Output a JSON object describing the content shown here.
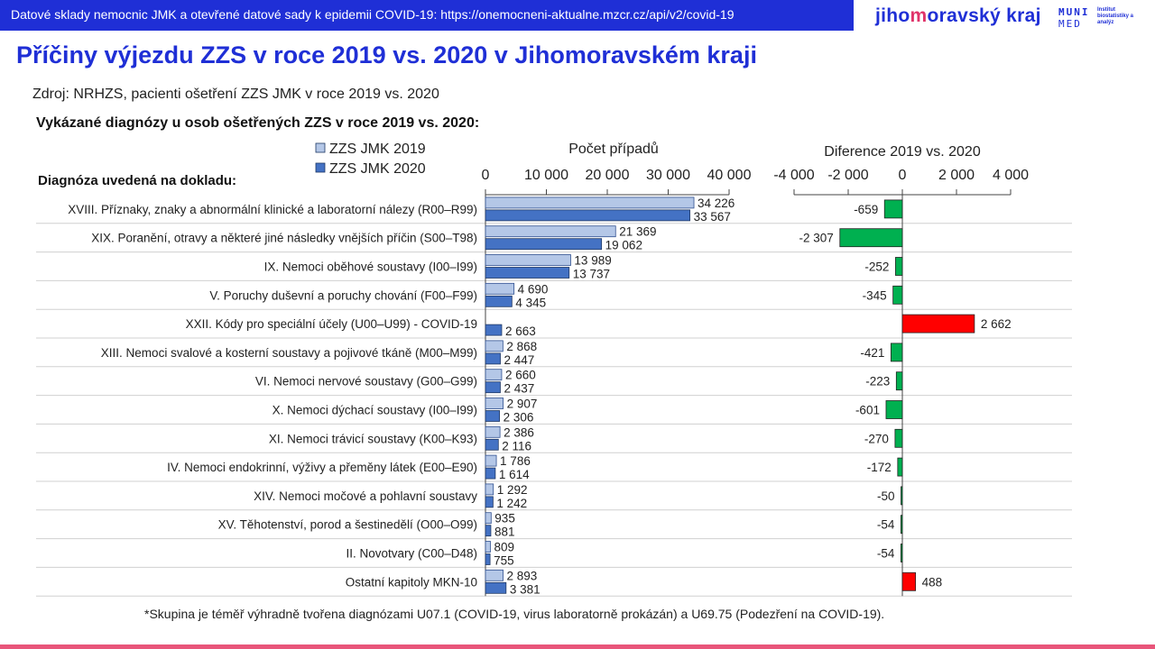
{
  "header": {
    "banner": "Datové sklady nemocnic JMK a otevřené datové sady k epidemii COVID-19: https://onemocneni-aktualne.mzcr.cz/api/v2/covid-19",
    "logo_jmk_pre": "jiho",
    "logo_jmk_hl": "m",
    "logo_jmk_post": "oravský kraj",
    "logo_muni_1": "MUNI",
    "logo_muni_2": "MED",
    "logo_muni_3": "Institut biostatistiky a analýz"
  },
  "title": "Příčiny výjezdu ZZS v roce 2019 vs. 2020 v Jihomoravském kraji",
  "source": "Zdroj: NRHZS, pacienti ošetření ZZS JMK v roce 2019 vs. 2020",
  "subtitle": "Vykázané diagnózy u osob ošetřených ZZS v roce 2019 vs. 2020:",
  "footnote": "*Skupina je téměř výhradně tvořena diagnózami U07.1 (COVID-19, virus laboratorně prokázán) a U69.75 (Podezření na COVID-19).",
  "colors": {
    "s2019": "#b4c7e7",
    "s2020": "#4472c4",
    "neg": "#00b050",
    "pos": "#ff0000",
    "accent": "#1f2fd6"
  },
  "chart_data": [
    {
      "type": "bar",
      "orientation": "horizontal",
      "title": "Počet případů",
      "category_header": "Diagnóza uvedená na dokladu:",
      "xlim": [
        0,
        40000
      ],
      "ticks": [
        "0",
        "10 000",
        "20 000",
        "30 000",
        "40 000"
      ],
      "tick_values": [
        0,
        10000,
        20000,
        30000,
        40000
      ],
      "legend": "top-left",
      "categories": [
        "XVIII. Příznaky, znaky a abnormální klinické a laboratorní nálezy (R00–R99)",
        "XIX. Poranění, otravy a některé jiné následky vnějších příčin (S00–T98)",
        "IX. Nemoci oběhové soustavy (I00–I99)",
        "V. Poruchy duševní a poruchy chování (F00–F99)",
        "XXII. Kódy pro speciální účely (U00–U99) - COVID-19",
        "XIII. Nemoci svalové a kosterní soustavy a pojivové tkáně (M00–M99)",
        "VI. Nemoci nervové soustavy (G00–G99)",
        "X. Nemoci dýchací soustavy (I00–I99)",
        "XI. Nemoci trávicí soustavy (K00–K93)",
        "IV. Nemoci endokrinní, výživy a přeměny látek (E00–E90)",
        "XIV. Nemoci močové a pohlavní soustavy",
        "XV. Těhotenství, porod a šestinedělí (O00–O99)",
        "II. Novotvary (C00–D48)",
        "Ostatní kapitoly MKN-10"
      ],
      "series": [
        {
          "name": "ZZS JMK 2019",
          "values": [
            34226,
            21369,
            13989,
            4690,
            null,
            2868,
            2660,
            2907,
            2386,
            1786,
            1292,
            935,
            809,
            2893
          ],
          "labels": [
            "34 226",
            "21 369",
            "13 989",
            "4 690",
            "",
            "2 868",
            "2 660",
            "2 907",
            "2 386",
            "1 786",
            "1 292",
            "935",
            "809",
            "2 893"
          ]
        },
        {
          "name": "ZZS JMK 2020",
          "values": [
            33567,
            19062,
            13737,
            4345,
            2663,
            2447,
            2437,
            2306,
            2116,
            1614,
            1242,
            881,
            755,
            3381
          ],
          "labels": [
            "33 567",
            "19 062",
            "13 737",
            "4 345",
            "2 663",
            "2 447",
            "2 437",
            "2 306",
            "2 116",
            "1 614",
            "1 242",
            "881",
            "755",
            "3 381"
          ]
        }
      ]
    },
    {
      "type": "bar",
      "orientation": "horizontal",
      "title": "Diferencе 2019 vs. 2020",
      "xlim": [
        -4000,
        4000
      ],
      "ticks": [
        "-4 000",
        "-2 000",
        "0",
        "2 000",
        "4 000"
      ],
      "tick_values": [
        -4000,
        -2000,
        0,
        2000,
        4000
      ],
      "values": [
        -659,
        -2307,
        -252,
        -345,
        2662,
        -421,
        -223,
        -601,
        -270,
        -172,
        -50,
        -54,
        -54,
        488
      ],
      "labels": [
        "-659",
        "-2 307",
        "-252",
        "-345",
        "2 662",
        "-421",
        "-223",
        "-601",
        "-270",
        "-172",
        "-50",
        "-54",
        "-54",
        "488"
      ]
    }
  ]
}
